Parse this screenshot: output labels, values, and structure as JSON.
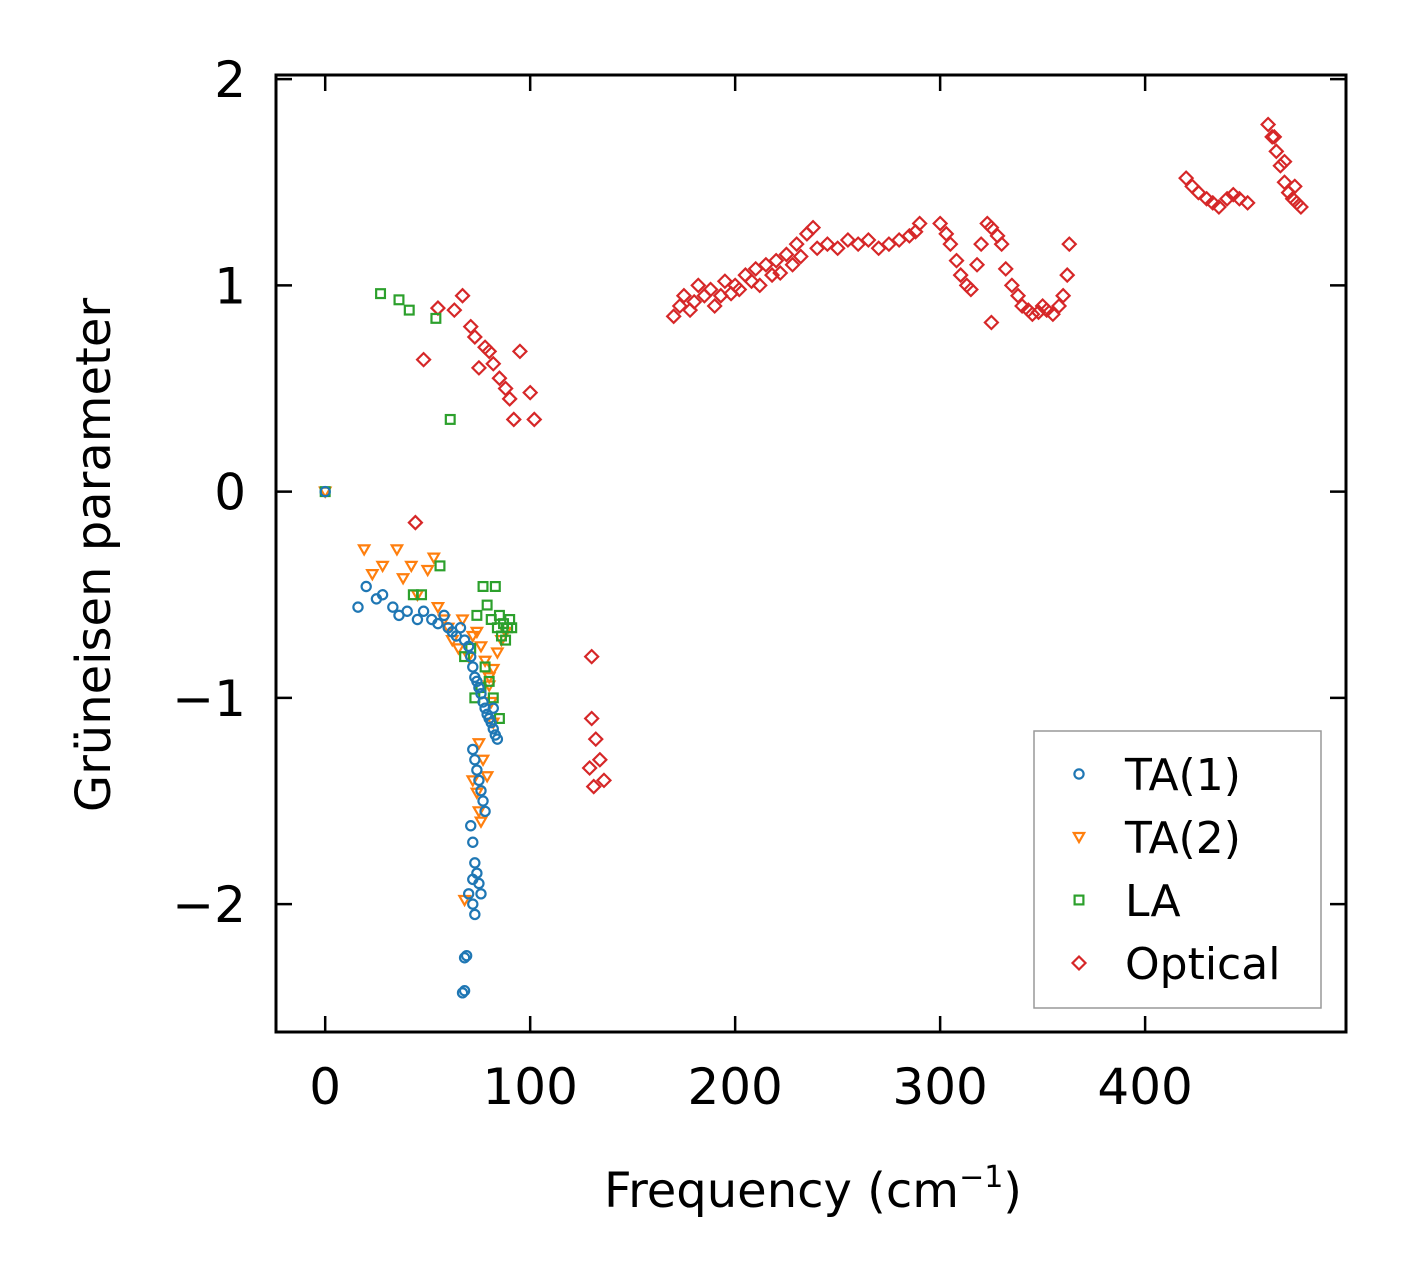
{
  "chart_data": {
    "type": "scatter",
    "title": "",
    "xlabel_main": "Frequency (cm",
    "xlabel_sup": "−1",
    "xlabel_close": ")",
    "ylabel": "Grüneisen parameter",
    "xlim": [
      -24,
      498
    ],
    "ylim": [
      -2.62,
      2.02
    ],
    "xticks": [
      0,
      100,
      200,
      300,
      400
    ],
    "xtick_labels": [
      "0",
      "100",
      "200",
      "300",
      "400"
    ],
    "yticks": [
      2,
      1,
      0,
      -1,
      -2
    ],
    "ytick_labels": [
      "2",
      "1",
      "0",
      "−1",
      "−2"
    ],
    "legend_position": "lower-right",
    "series": [
      {
        "name": "TA(1)",
        "marker": "circle",
        "color": "#1f77b4",
        "x": [
          0,
          16,
          20,
          25,
          28,
          33,
          36,
          40,
          45,
          48,
          52,
          55,
          58,
          60,
          62,
          64,
          66,
          68,
          70,
          71,
          72,
          73,
          74,
          75,
          76,
          77,
          78,
          79,
          80,
          81,
          82,
          83,
          84,
          72,
          73,
          74,
          75,
          76,
          77,
          78,
          80,
          82,
          71,
          72,
          73,
          74,
          75,
          76,
          72,
          73,
          70,
          72,
          69,
          68,
          68,
          67
        ],
        "y": [
          0,
          -0.56,
          -0.46,
          -0.52,
          -0.5,
          -0.56,
          -0.6,
          -0.58,
          -0.62,
          -0.58,
          -0.62,
          -0.64,
          -0.6,
          -0.66,
          -0.68,
          -0.7,
          -0.66,
          -0.72,
          -0.75,
          -0.8,
          -0.85,
          -0.9,
          -0.92,
          -0.95,
          -0.98,
          -1.02,
          -1.05,
          -1.08,
          -1.1,
          -1.12,
          -1.15,
          -1.18,
          -1.2,
          -1.25,
          -1.3,
          -1.35,
          -1.4,
          -1.45,
          -1.5,
          -1.55,
          -1.1,
          -1.05,
          -1.62,
          -1.7,
          -1.8,
          -1.85,
          -1.9,
          -1.95,
          -2.0,
          -2.05,
          -1.95,
          -1.88,
          -2.25,
          -2.26,
          -2.42,
          -2.43
        ]
      },
      {
        "name": "TA(2)",
        "marker": "triangle-down",
        "color": "#ff7f0e",
        "x": [
          0,
          19,
          23,
          28,
          35,
          38,
          42,
          45,
          50,
          53,
          55,
          58,
          60,
          62,
          65,
          67,
          70,
          72,
          74,
          76,
          78,
          80,
          82,
          84,
          86,
          88,
          75,
          77,
          79,
          80,
          81,
          82,
          75,
          76,
          74,
          72,
          68
        ],
        "y": [
          0,
          -0.28,
          -0.4,
          -0.36,
          -0.28,
          -0.42,
          -0.36,
          -0.5,
          -0.38,
          -0.32,
          -0.56,
          -0.62,
          -0.66,
          -0.72,
          -0.76,
          -0.62,
          -0.8,
          -0.7,
          -0.68,
          -0.75,
          -0.82,
          -0.9,
          -0.86,
          -0.78,
          -0.72,
          -0.68,
          -1.22,
          -1.3,
          -1.38,
          -0.94,
          -1.02,
          -1.12,
          -1.55,
          -1.6,
          -1.46,
          -1.4,
          -1.98
        ]
      },
      {
        "name": "LA",
        "marker": "square",
        "color": "#2ca02c",
        "x": [
          0,
          27,
          36,
          41,
          54,
          61,
          43,
          47,
          56,
          68,
          71,
          74,
          77,
          79,
          81,
          83,
          84,
          85,
          86,
          87,
          88,
          89,
          90,
          91,
          78,
          80,
          82,
          85,
          73,
          76
        ],
        "y": [
          0,
          0.96,
          0.93,
          0.88,
          0.84,
          0.35,
          -0.5,
          -0.5,
          -0.36,
          -0.8,
          -0.76,
          -0.6,
          -0.46,
          -0.55,
          -0.62,
          -0.46,
          -0.66,
          -0.6,
          -0.7,
          -0.64,
          -0.72,
          -0.66,
          -0.62,
          -0.66,
          -0.85,
          -0.92,
          -1.0,
          -1.1,
          -1.0,
          -0.95
        ]
      },
      {
        "name": "Optical",
        "marker": "diamond",
        "color": "#d62728",
        "x": [
          44,
          48,
          55,
          63,
          67,
          71,
          73,
          75,
          78,
          80,
          82,
          85,
          88,
          90,
          92,
          95,
          100,
          102,
          130,
          130,
          132,
          134,
          136,
          129,
          131,
          170,
          173,
          175,
          178,
          180,
          182,
          185,
          188,
          190,
          193,
          195,
          198,
          200,
          202,
          205,
          208,
          210,
          212,
          215,
          218,
          220,
          222,
          225,
          228,
          230,
          232,
          235,
          238,
          240,
          245,
          250,
          255,
          260,
          265,
          270,
          275,
          280,
          285,
          288,
          290,
          300,
          303,
          305,
          308,
          310,
          313,
          315,
          318,
          320,
          323,
          325,
          328,
          330,
          332,
          335,
          338,
          340,
          343,
          345,
          348,
          350,
          352,
          355,
          358,
          360,
          362,
          363,
          325,
          420,
          423,
          426,
          430,
          433,
          436,
          440,
          443,
          446,
          450,
          460,
          462,
          464,
          466,
          468,
          470,
          472,
          474,
          476,
          463,
          468,
          473
        ],
        "y": [
          -0.15,
          0.64,
          0.89,
          0.88,
          0.95,
          0.8,
          0.75,
          0.6,
          0.7,
          0.68,
          0.62,
          0.55,
          0.5,
          0.45,
          0.35,
          0.68,
          0.48,
          0.35,
          -0.8,
          -1.1,
          -1.2,
          -1.3,
          -1.4,
          -1.34,
          -1.43,
          0.85,
          0.9,
          0.95,
          0.88,
          0.92,
          1.0,
          0.95,
          0.98,
          0.9,
          0.95,
          1.02,
          0.96,
          1.0,
          0.98,
          1.05,
          1.02,
          1.08,
          1.0,
          1.1,
          1.05,
          1.12,
          1.06,
          1.15,
          1.1,
          1.2,
          1.14,
          1.25,
          1.28,
          1.18,
          1.2,
          1.18,
          1.22,
          1.2,
          1.22,
          1.18,
          1.2,
          1.22,
          1.24,
          1.26,
          1.3,
          1.3,
          1.25,
          1.2,
          1.12,
          1.05,
          1.0,
          0.98,
          1.1,
          1.2,
          1.3,
          1.28,
          1.24,
          1.2,
          1.08,
          1.0,
          0.95,
          0.9,
          0.88,
          0.86,
          0.87,
          0.9,
          0.88,
          0.86,
          0.9,
          0.95,
          1.05,
          1.2,
          0.82,
          1.52,
          1.48,
          1.45,
          1.42,
          1.4,
          1.38,
          1.42,
          1.44,
          1.42,
          1.4,
          1.78,
          1.72,
          1.65,
          1.58,
          1.5,
          1.45,
          1.42,
          1.4,
          1.38,
          1.72,
          1.6,
          1.48
        ]
      }
    ]
  }
}
